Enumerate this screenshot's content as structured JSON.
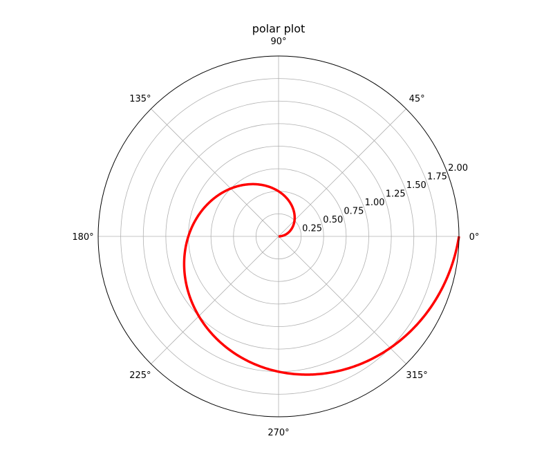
{
  "chart_data": {
    "type": "polar-line",
    "title": "polar plot",
    "r_ticks": [
      0.25,
      0.5,
      0.75,
      1.0,
      1.25,
      1.5,
      1.75,
      2.0
    ],
    "r_tick_labels": [
      "0.25",
      "0.50",
      "0.75",
      "1.00",
      "1.25",
      "1.50",
      "1.75",
      "2.00"
    ],
    "rlim": [
      0,
      2.0
    ],
    "theta_ticks_deg": [
      0,
      45,
      90,
      135,
      180,
      225,
      270,
      315
    ],
    "theta_tick_labels": [
      "0°",
      "45°",
      "90°",
      "135°",
      "180°",
      "225°",
      "270°",
      "315°"
    ],
    "grid": true,
    "series": [
      {
        "color": "#ff0000",
        "theta_rad": [
          0,
          6.283185307
        ],
        "r_formula": "r = theta / pi",
        "theta_range_rad": [
          0,
          6.2832
        ]
      }
    ]
  }
}
